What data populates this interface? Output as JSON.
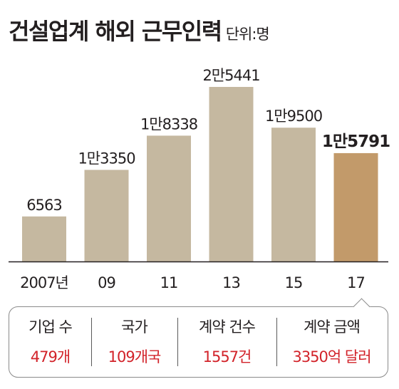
{
  "title": "건설업계 해외 근무인력",
  "unit": "단위:명",
  "colors": {
    "bar": "#c5b8a0",
    "highlight": "#c29a6a",
    "text": "#231f20",
    "value_red": "#d2232a"
  },
  "chart_data": {
    "type": "bar",
    "categories": [
      "2007년",
      "09",
      "11",
      "13",
      "15",
      "17"
    ],
    "values": [
      6563,
      13350,
      18338,
      25441,
      19500,
      15791
    ],
    "value_labels": [
      "6563",
      "1만3350",
      "1만8338",
      "2만5441",
      "1만9500",
      "1만5791"
    ],
    "highlight_index": 5,
    "title": "건설업계 해외 근무인력",
    "xlabel": "",
    "ylabel": "",
    "ylim": [
      0,
      25441
    ],
    "grid": false,
    "legend": "none"
  },
  "stats": [
    {
      "label": "기업 수",
      "value": "479개"
    },
    {
      "label": "국가",
      "value": "109개국"
    },
    {
      "label": "계약 건수",
      "value": "1557건"
    },
    {
      "label": "계약 금액",
      "value": "3350억 달러"
    }
  ]
}
